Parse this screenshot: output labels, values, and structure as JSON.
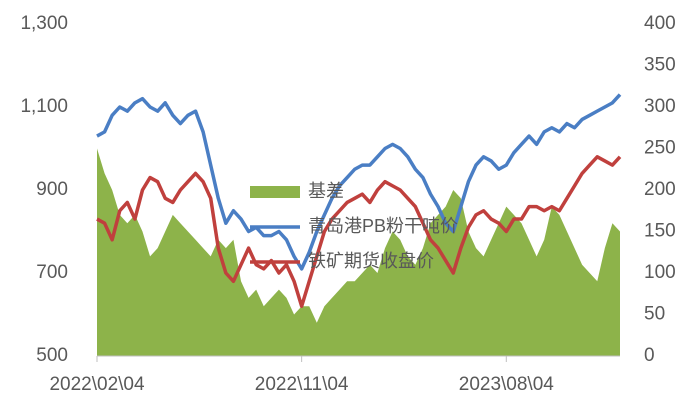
{
  "chart_data": {
    "type": "combo",
    "categories": [
      "2022\\02\\04",
      null,
      null,
      null,
      null,
      null,
      null,
      null,
      null,
      null,
      null,
      null,
      null,
      null,
      null,
      null,
      null,
      null,
      null,
      null,
      null,
      null,
      null,
      null,
      null,
      null,
      null,
      "2022\\11\\04",
      null,
      null,
      null,
      null,
      null,
      null,
      null,
      null,
      null,
      null,
      null,
      null,
      null,
      null,
      null,
      null,
      null,
      null,
      null,
      null,
      null,
      null,
      null,
      null,
      null,
      null,
      "2023\\08\\04",
      null,
      null,
      null,
      null,
      null,
      null,
      null,
      null,
      null,
      null,
      null,
      null,
      null,
      null,
      null
    ],
    "series": [
      {
        "name": "基差",
        "color": "#8db34a",
        "kind": "area",
        "axis": "y2",
        "values": [
          250,
          220,
          200,
          170,
          160,
          170,
          150,
          120,
          130,
          150,
          170,
          160,
          150,
          140,
          130,
          120,
          140,
          130,
          140,
          90,
          70,
          80,
          60,
          70,
          80,
          70,
          50,
          60,
          60,
          40,
          60,
          70,
          80,
          90,
          90,
          100,
          110,
          100,
          130,
          150,
          140,
          120,
          110,
          130,
          160,
          170,
          180,
          200,
          190,
          150,
          130,
          120,
          140,
          160,
          180,
          170,
          160,
          140,
          120,
          140,
          180,
          170,
          150,
          130,
          110,
          100,
          90,
          130,
          160,
          150
        ]
      },
      {
        "name": "青岛港PB粉干吨价",
        "color": "#4a7ec4",
        "kind": "line",
        "values": [
          1030,
          1040,
          1080,
          1100,
          1090,
          1110,
          1120,
          1100,
          1090,
          1110,
          1080,
          1060,
          1080,
          1090,
          1040,
          960,
          880,
          820,
          850,
          830,
          800,
          810,
          790,
          790,
          800,
          780,
          740,
          710,
          750,
          800,
          840,
          880,
          910,
          930,
          950,
          960,
          960,
          980,
          1000,
          1010,
          1000,
          980,
          950,
          930,
          890,
          860,
          820,
          800,
          860,
          920,
          960,
          980,
          970,
          950,
          960,
          990,
          1010,
          1030,
          1010,
          1040,
          1050,
          1040,
          1060,
          1050,
          1070,
          1080,
          1090,
          1100,
          1110,
          1130
        ]
      },
      {
        "name": "铁矿期货收盘价",
        "color": "#c0403d",
        "kind": "line",
        "values": [
          830,
          820,
          780,
          850,
          870,
          830,
          900,
          930,
          920,
          880,
          870,
          900,
          920,
          940,
          920,
          880,
          760,
          700,
          680,
          720,
          760,
          720,
          710,
          730,
          700,
          720,
          680,
          620,
          680,
          740,
          800,
          830,
          850,
          870,
          880,
          890,
          870,
          900,
          920,
          910,
          900,
          880,
          860,
          820,
          780,
          760,
          730,
          700,
          760,
          810,
          840,
          850,
          830,
          820,
          800,
          830,
          830,
          860,
          860,
          850,
          860,
          850,
          880,
          910,
          940,
          960,
          980,
          970,
          960,
          980
        ]
      }
    ],
    "ylim": [
      500,
      1300
    ],
    "yticks": [
      500,
      700,
      900,
      {
        "value": 1100,
        "label": "1,100"
      },
      {
        "value": 1300,
        "label": "1,300"
      }
    ],
    "y2lim": [
      0,
      400
    ],
    "y2ticks": [
      0,
      50,
      100,
      150,
      200,
      250,
      300,
      350,
      400
    ],
    "legend": "center"
  }
}
